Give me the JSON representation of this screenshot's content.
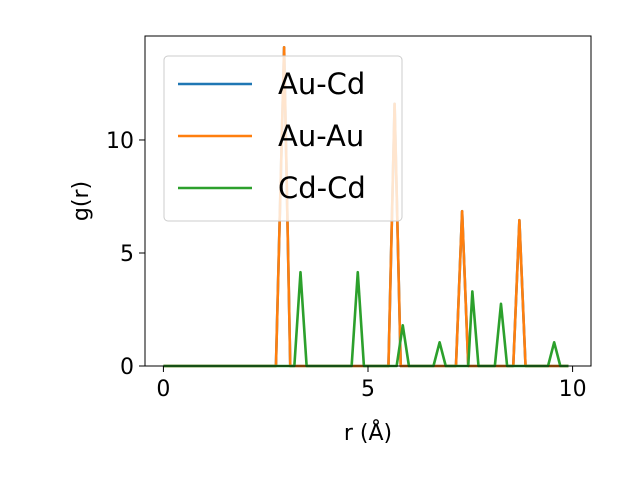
{
  "chart_data": {
    "type": "line",
    "title": "",
    "xlabel": "r (Å)",
    "ylabel": "g(r)",
    "xlim": [
      -0.45,
      10.45
    ],
    "ylim": [
      0,
      14.6
    ],
    "xticks": [
      0,
      5,
      10
    ],
    "yticks": [
      0,
      5,
      10
    ],
    "grid": false,
    "legend_position": "upper left",
    "series": [
      {
        "name": "Au-Cd",
        "color": "#1f77b4",
        "x": [
          0,
          2.75,
          2.95,
          3.1,
          5.5,
          5.65,
          5.8,
          7.15,
          7.3,
          7.45,
          8.55,
          8.7,
          8.85,
          9.9
        ],
        "y": [
          0,
          0,
          14.1,
          0,
          0,
          11.6,
          0,
          0,
          6.85,
          0,
          0,
          6.45,
          0,
          0
        ]
      },
      {
        "name": "Au-Au",
        "color": "#ff7f0e",
        "x": [
          0,
          2.75,
          2.95,
          3.1,
          5.5,
          5.65,
          5.8,
          7.15,
          7.3,
          7.45,
          8.55,
          8.7,
          8.85,
          9.9
        ],
        "y": [
          0,
          0,
          14.1,
          0,
          0,
          11.6,
          0,
          0,
          6.85,
          0,
          0,
          6.45,
          0,
          0
        ]
      },
      {
        "name": "Cd-Cd",
        "color": "#2ca02c",
        "x": [
          0,
          3.2,
          3.35,
          3.5,
          4.6,
          4.75,
          4.9,
          5.7,
          5.85,
          6.0,
          6.6,
          6.75,
          6.9,
          7.45,
          7.55,
          7.7,
          8.1,
          8.25,
          8.4,
          9.4,
          9.55,
          9.7,
          9.9
        ],
        "y": [
          0,
          0,
          4.15,
          0,
          0,
          4.15,
          0,
          0,
          1.8,
          0,
          0,
          1.05,
          0,
          0,
          3.3,
          0,
          0,
          2.75,
          0,
          0,
          1.05,
          0,
          0
        ]
      }
    ]
  }
}
